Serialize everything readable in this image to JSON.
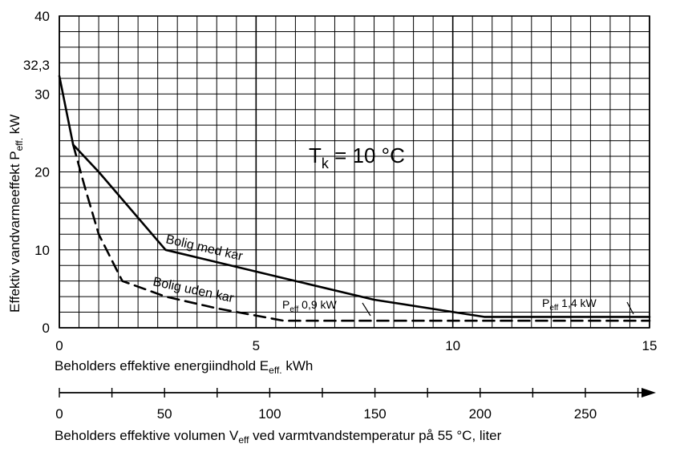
{
  "chart_data": {
    "type": "line",
    "xlabel_main": "Beholders effektive energiindhold E",
    "xlabel_main_sub": "eff.",
    "xlabel_main_unit": " kWh",
    "ylabel": "Effektiv vandvarmeeffekt P",
    "ylabel_sub": "eff.",
    "ylabel_unit": " kW",
    "x_ticks": [
      "0",
      "5",
      "10",
      "15"
    ],
    "xlim": [
      0,
      15
    ],
    "y_ticks": [
      "0",
      "10",
      "20",
      "30",
      "40"
    ],
    "ylim": [
      0,
      40
    ],
    "y_extra_tick": "32,3",
    "y_extra_value": 32.3,
    "x2_label_prefix": "Beholders effektive volumen V",
    "x2_label_sub": "eff",
    "x2_label_suffix": " ved varmtvandstemperatur på 55 °C, liter",
    "x2_ticks": [
      "0",
      "50",
      "100",
      "150",
      "200",
      "250"
    ],
    "x2_tick_values": [
      0,
      50,
      100,
      150,
      200,
      250
    ],
    "x2_liters_per_kwh": 18.7,
    "annotation_tk_main": "T",
    "annotation_tk_sub": "k",
    "annotation_tk_value": " = 10 °C",
    "grid": true,
    "series": [
      {
        "name": "Bolig med kar",
        "style": "solid",
        "x": [
          0,
          0.35,
          1.0,
          2.7,
          6.0,
          8.0,
          10.8,
          15
        ],
        "y": [
          32.3,
          23.5,
          20,
          10,
          6,
          3.6,
          1.4,
          1.4
        ]
      },
      {
        "name": "Bolig uden kar",
        "style": "dashed",
        "x": [
          0.35,
          0.65,
          1.0,
          1.6,
          2.7,
          4.0,
          5.7,
          8.0,
          10.8,
          15
        ],
        "y": [
          23.5,
          18,
          12,
          6,
          4,
          2.5,
          0.9,
          0.9,
          0.9,
          0.9
        ]
      }
    ],
    "annotations": [
      {
        "main": "P",
        "sub": "eff",
        "value": " 0,9 kW"
      },
      {
        "main": "P",
        "sub": "eff",
        "value": " 1,4 kW"
      }
    ]
  }
}
